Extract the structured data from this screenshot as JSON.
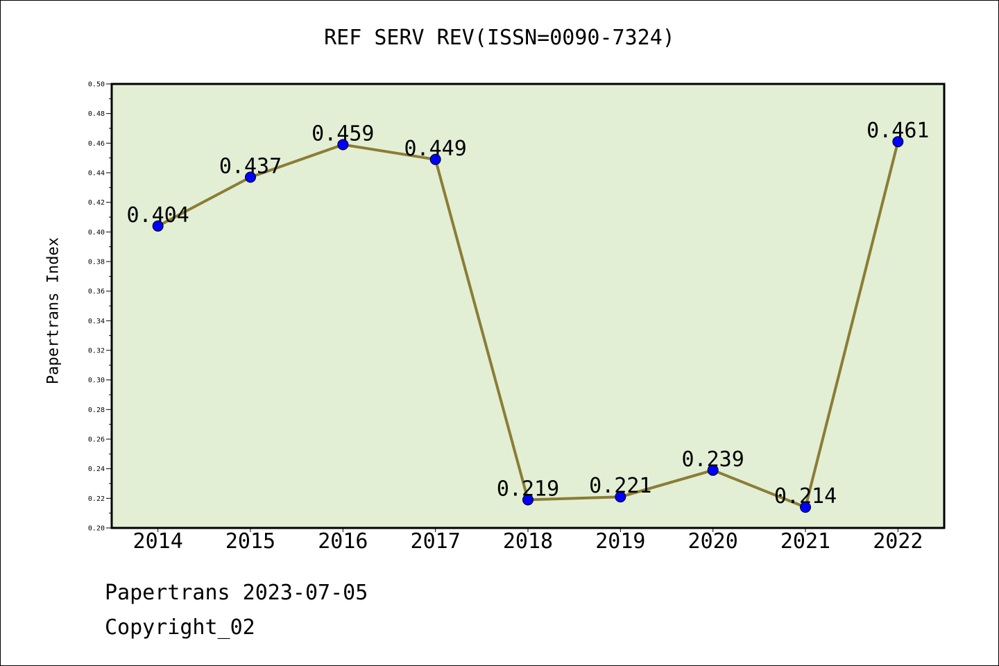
{
  "chart_data": {
    "type": "line",
    "title": "REF SERV REV(ISSN=0090-7324)",
    "xlabel": "",
    "ylabel": "Papertrans Index",
    "categories": [
      "2014",
      "2015",
      "2016",
      "2017",
      "2018",
      "2019",
      "2020",
      "2021",
      "2022"
    ],
    "values": [
      0.404,
      0.437,
      0.459,
      0.449,
      0.219,
      0.221,
      0.239,
      0.214,
      0.461
    ],
    "data_labels": [
      "0.404",
      "0.437",
      "0.459",
      "0.449",
      "0.219",
      "0.221",
      "0.239",
      "0.214",
      "0.461"
    ],
    "ylim": [
      0.2,
      0.5
    ],
    "yticks": [
      "0.20",
      "0.22",
      "0.24",
      "0.26",
      "0.28",
      "0.30",
      "0.32",
      "0.34",
      "0.36",
      "0.38",
      "0.40",
      "0.42",
      "0.44",
      "0.46",
      "0.48",
      "0.50"
    ],
    "grid": false,
    "legend": "none",
    "colors": {
      "plot_background": "#e2efd5",
      "line": "#8b7d35",
      "marker": "#0000ff"
    }
  },
  "footer": {
    "line1": "Papertrans 2023-07-05",
    "line2": "Copyright_02"
  }
}
